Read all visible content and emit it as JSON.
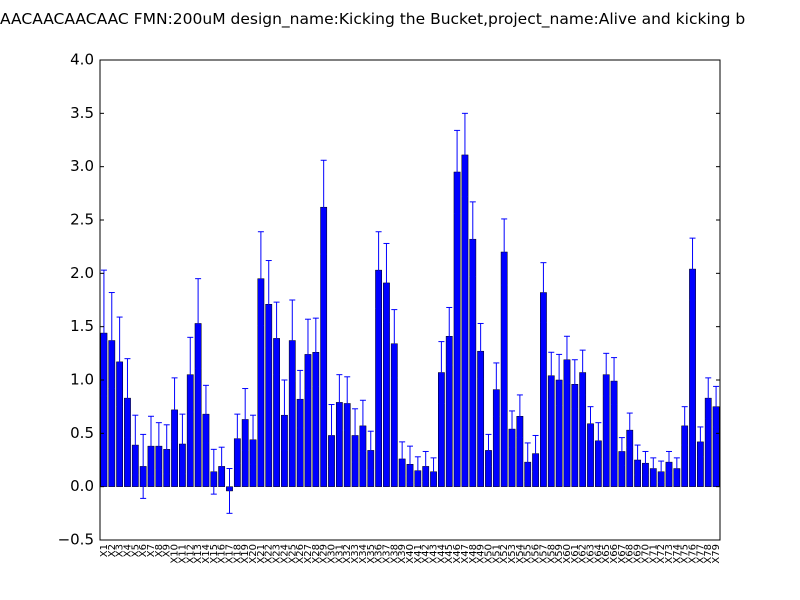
{
  "chart_data": {
    "type": "bar",
    "title": "AACAACAACAAC  FMN:200uM  design_name:Kicking the Bucket,project_name:Alive and kicking b",
    "categories": [
      "X1",
      "X2",
      "X3",
      "X4",
      "X5",
      "X6",
      "X7",
      "X8",
      "X9",
      "X10",
      "X11",
      "X12",
      "X13",
      "X14",
      "X15",
      "X16",
      "X17",
      "X18",
      "X19",
      "X20",
      "X21",
      "X22",
      "X23",
      "X24",
      "X25",
      "X26",
      "X27",
      "X28",
      "X29",
      "X30",
      "X31",
      "X32",
      "X33",
      "X34",
      "X35",
      "X36",
      "X37",
      "X38",
      "X39",
      "X40",
      "X41",
      "X42",
      "X43",
      "X44",
      "X45",
      "X46",
      "X47",
      "X48",
      "X49",
      "X50",
      "X51",
      "X52",
      "X53",
      "X54",
      "X55",
      "X56",
      "X57",
      "X58",
      "X59",
      "X60",
      "X61",
      "X62",
      "X63",
      "X64",
      "X65",
      "X66",
      "X67",
      "X68",
      "X69",
      "X70",
      "X71",
      "X72",
      "X73",
      "X74",
      "X75",
      "X76",
      "X77",
      "X78",
      "X79"
    ],
    "values": [
      1.44,
      1.37,
      1.17,
      0.83,
      0.39,
      0.19,
      0.38,
      0.38,
      0.35,
      0.72,
      0.4,
      1.05,
      1.53,
      0.68,
      0.14,
      0.19,
      -0.04,
      0.45,
      0.63,
      0.44,
      1.95,
      1.71,
      1.39,
      0.67,
      1.37,
      0.82,
      1.24,
      1.26,
      2.62,
      0.48,
      0.79,
      0.78,
      0.48,
      0.57,
      0.34,
      2.03,
      1.91,
      1.34,
      0.26,
      0.21,
      0.15,
      0.19,
      0.14,
      1.07,
      1.41,
      2.95,
      3.11,
      2.32,
      1.27,
      0.34,
      0.91,
      2.2,
      0.54,
      0.66,
      0.23,
      0.31,
      1.82,
      1.04,
      1.0,
      1.19,
      0.96,
      1.07,
      0.59,
      0.43,
      1.05,
      0.99,
      0.33,
      0.53,
      0.25,
      0.22,
      0.17,
      0.14,
      0.23,
      0.17,
      0.57,
      2.04,
      0.42,
      0.83,
      0.75
    ],
    "errors": [
      0.59,
      0.45,
      0.42,
      0.37,
      0.28,
      0.3,
      0.28,
      0.22,
      0.23,
      0.3,
      0.28,
      0.35,
      0.42,
      0.27,
      0.21,
      0.18,
      0.21,
      0.23,
      0.29,
      0.23,
      0.44,
      0.41,
      0.34,
      0.33,
      0.38,
      0.27,
      0.33,
      0.32,
      0.44,
      0.29,
      0.26,
      0.25,
      0.25,
      0.24,
      0.18,
      0.36,
      0.37,
      0.32,
      0.16,
      0.17,
      0.13,
      0.14,
      0.13,
      0.29,
      0.27,
      0.39,
      0.39,
      0.35,
      0.26,
      0.15,
      0.25,
      0.31,
      0.17,
      0.2,
      0.18,
      0.17,
      0.28,
      0.22,
      0.24,
      0.22,
      0.23,
      0.21,
      0.16,
      0.17,
      0.2,
      0.22,
      0.13,
      0.16,
      0.14,
      0.11,
      0.1,
      0.1,
      0.1,
      0.1,
      0.18,
      0.29,
      0.14,
      0.19,
      0.19
    ],
    "color": "#0000ff",
    "error_color": "#0000ff",
    "ylim": [
      -0.5,
      4.0
    ],
    "yticks": [
      {
        "value": -0.5,
        "label": "−0.5"
      },
      {
        "value": 0,
        "label": "0.0"
      },
      0.5,
      {
        "value": 1,
        "label": "1.0"
      },
      1.5,
      {
        "value": 2,
        "label": "2.0"
      },
      2.5,
      {
        "value": 3,
        "label": "3.0"
      },
      3.5,
      {
        "value": 4,
        "label": "4.0"
      }
    ],
    "grid": false
  }
}
